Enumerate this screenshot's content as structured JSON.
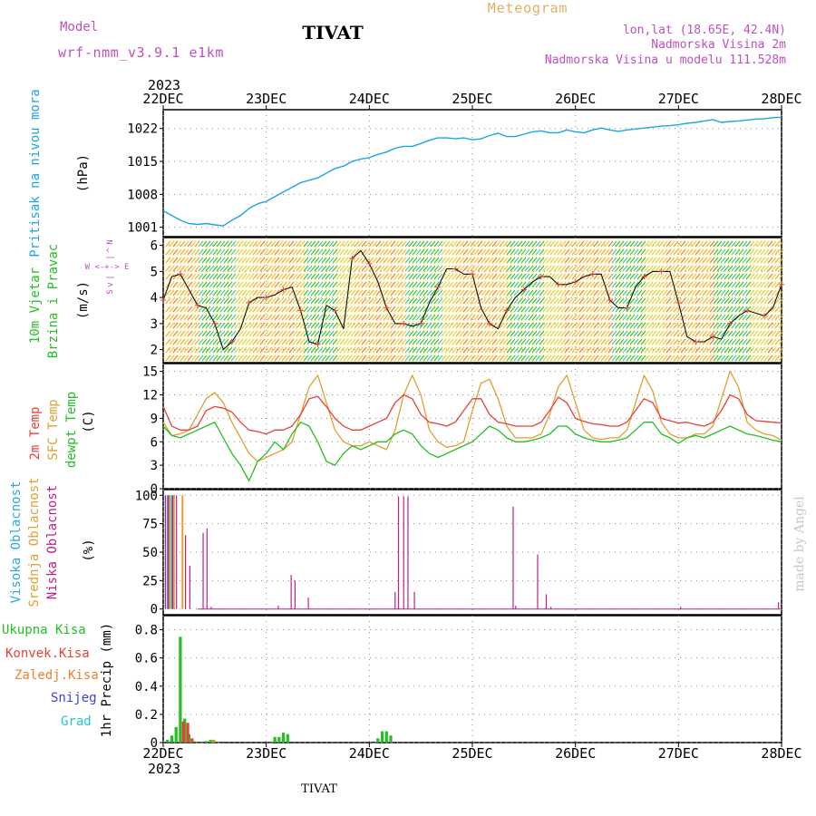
{
  "header": {
    "model_label": "Model",
    "model_name": "wrf-nmm_v3.9.1 e1km",
    "station": "TIVAT",
    "product": "Meteogram",
    "coords": "lon,lat (18.65E, 42.4N)",
    "elevation": "Nadmorska Visina 2m",
    "model_elevation": "Nadmorska Visina u modelu 111.528m",
    "watermark": "made by Angel",
    "footer_station": "TIVAT"
  },
  "colors": {
    "pressure": "#1aa6e6",
    "temp2m": "#e8403a",
    "sfc": "#e0a030",
    "dew": "#22c022",
    "high_cloud": "#2ea8e0",
    "mid_cloud": "#e0a030",
    "low_cloud": "#c0208a",
    "wind_speed": "#111111",
    "rain_total": "#22c022",
    "rain_conv": "#e8403a",
    "rain_frozen": "#f08030",
    "snow": "#4040e0",
    "hail": "#20c8c8",
    "magenta_text": "#c050c0",
    "gold_text": "#e0b060"
  },
  "chart_data": [
    {
      "type": "line",
      "id": "pressure",
      "ylabel_lines": [
        "Pritisak na nivou mora",
        "(hPa)"
      ],
      "x_year": "2023",
      "x_ticks": [
        "22DEC",
        "23DEC",
        "24DEC",
        "25DEC",
        "26DEC",
        "27DEC",
        "28DEC"
      ],
      "x_hours": [
        0,
        24,
        48,
        72,
        96,
        120,
        144
      ],
      "ylim": [
        999,
        1026
      ],
      "y_ticks": [
        1001,
        1008,
        1015,
        1022
      ],
      "series": [
        {
          "x": [
            0,
            2,
            4,
            6,
            8,
            10,
            12,
            14,
            16,
            18,
            20,
            22,
            24,
            26,
            28,
            30,
            32,
            34,
            36,
            38,
            40,
            42,
            44,
            46,
            48,
            50,
            52,
            54,
            56,
            58,
            60,
            62,
            64,
            66,
            68,
            70,
            72,
            74,
            76,
            78,
            80,
            82,
            84,
            86,
            88,
            90,
            92,
            94,
            96,
            98,
            100,
            102,
            104,
            106,
            108,
            110,
            112,
            114,
            116,
            118,
            120,
            122,
            124,
            126,
            128,
            130,
            132,
            134,
            136,
            138,
            140,
            142,
            144
          ],
          "values": [
            1004.5,
            1003.5,
            1002.5,
            1001.8,
            1001.6,
            1001.8,
            1001.5,
            1001.3,
            1002.5,
            1003.5,
            1005,
            1006,
            1006.5,
            1007.5,
            1008.5,
            1009.5,
            1010.5,
            1011,
            1011.5,
            1012.5,
            1013.5,
            1014,
            1015,
            1015.5,
            1015.8,
            1016.5,
            1017,
            1017.8,
            1018.2,
            1018.2,
            1018.8,
            1019.5,
            1020,
            1020,
            1019.8,
            1020,
            1019.6,
            1019.8,
            1020.5,
            1021,
            1020.3,
            1020.3,
            1020.8,
            1021.3,
            1021.5,
            1021.1,
            1021.1,
            1021.7,
            1021.3,
            1021.1,
            1021.7,
            1022.1,
            1021.7,
            1021.4,
            1021.7,
            1021.9,
            1022.1,
            1022.3,
            1022.5,
            1022.6,
            1022.8,
            1023.1,
            1023.3,
            1023.6,
            1023.9,
            1023.3,
            1023.5,
            1023.6,
            1023.8,
            1024,
            1024.1,
            1024.3,
            1024.4
          ]
        }
      ]
    },
    {
      "type": "line",
      "id": "wind",
      "ylabel_lines": [
        "10m Vjetar",
        "Brzina i Pravac",
        "(m/s)"
      ],
      "compass_lines": [
        "N",
        "^",
        "|",
        "W <-+-> E",
        "|",
        "v",
        "S"
      ],
      "ylim": [
        1.5,
        6.3
      ],
      "y_ticks": [
        2,
        3,
        4,
        5,
        6
      ],
      "series": [
        {
          "name": "speed",
          "x": [
            0,
            2,
            4,
            6,
            8,
            10,
            12,
            14,
            16,
            18,
            20,
            22,
            24,
            26,
            28,
            30,
            32,
            34,
            36,
            38,
            40,
            42,
            44,
            46,
            48,
            50,
            52,
            54,
            56,
            58,
            60,
            62,
            64,
            66,
            68,
            70,
            72,
            74,
            76,
            78,
            80,
            82,
            84,
            86,
            88,
            90,
            92,
            94,
            96,
            98,
            100,
            102,
            104,
            106,
            108,
            110,
            112,
            114,
            116,
            118,
            120,
            122,
            124,
            126,
            128,
            130,
            132,
            134,
            136,
            138,
            140,
            142,
            144
          ],
          "values": [
            3.9,
            4.8,
            4.9,
            4.3,
            3.7,
            3.6,
            3.0,
            2.0,
            2.3,
            2.8,
            3.8,
            4.0,
            4.0,
            4.1,
            4.3,
            4.4,
            3.5,
            2.3,
            2.2,
            3.7,
            3.5,
            2.8,
            5.5,
            5.8,
            5.3,
            4.6,
            3.6,
            3.0,
            3.0,
            2.9,
            3.0,
            3.8,
            4.4,
            5.1,
            5.1,
            4.9,
            4.9,
            3.6,
            3.0,
            2.8,
            3.5,
            4.0,
            4.3,
            4.6,
            4.8,
            4.8,
            4.5,
            4.5,
            4.6,
            4.8,
            4.9,
            4.9,
            3.9,
            3.6,
            3.6,
            4.4,
            4.8,
            5.0,
            5.0,
            5.0,
            3.8,
            2.5,
            2.3,
            2.3,
            2.5,
            2.4,
            3.0,
            3.3,
            3.5,
            3.4,
            3.3,
            3.6,
            4.5
          ]
        }
      ]
    },
    {
      "type": "line",
      "id": "temperature",
      "ylabel_lines": [
        "2m Temp",
        "SFC Temp",
        "dewpt Temp",
        "(C)"
      ],
      "ylim": [
        0,
        16
      ],
      "y_ticks": [
        0,
        3,
        6,
        9,
        12,
        15
      ],
      "series": [
        {
          "name": "2m Temp",
          "x": [
            0,
            2,
            4,
            6,
            8,
            10,
            12,
            14,
            16,
            18,
            20,
            22,
            24,
            26,
            28,
            30,
            32,
            34,
            36,
            38,
            40,
            42,
            44,
            46,
            48,
            50,
            52,
            54,
            56,
            58,
            60,
            62,
            64,
            66,
            68,
            70,
            72,
            74,
            76,
            78,
            80,
            82,
            84,
            86,
            88,
            90,
            92,
            94,
            96,
            98,
            100,
            102,
            104,
            106,
            108,
            110,
            112,
            114,
            116,
            118,
            120,
            122,
            124,
            126,
            128,
            130,
            132,
            134,
            136,
            138,
            140,
            142,
            144
          ],
          "values": [
            10.5,
            8,
            7.5,
            7.5,
            8,
            10,
            10.5,
            10.3,
            9.8,
            8.5,
            7.5,
            7.3,
            7,
            7.5,
            7.5,
            8,
            9.5,
            11.5,
            11.8,
            10.5,
            9,
            8,
            7.5,
            7.5,
            8,
            8.5,
            9,
            11,
            12,
            11.5,
            9.5,
            8.5,
            8.3,
            8,
            8.5,
            10,
            11.5,
            11.5,
            9.5,
            8.5,
            8.3,
            8,
            8,
            8,
            8.5,
            10,
            11.7,
            11,
            9,
            8.6,
            8.3,
            8.2,
            8,
            8,
            8.5,
            10,
            11.5,
            11,
            9,
            8.7,
            8.4,
            8.5,
            8.2,
            8,
            8.5,
            10,
            12,
            11.5,
            9.5,
            8.7,
            8.6,
            8.5,
            8.4
          ]
        },
        {
          "name": "SFC Temp",
          "x": [
            0,
            2,
            4,
            6,
            8,
            10,
            12,
            14,
            16,
            18,
            20,
            22,
            24,
            26,
            28,
            30,
            32,
            34,
            36,
            38,
            40,
            42,
            44,
            46,
            48,
            50,
            52,
            54,
            56,
            58,
            60,
            62,
            64,
            66,
            68,
            70,
            72,
            74,
            76,
            78,
            80,
            82,
            84,
            86,
            88,
            90,
            92,
            94,
            96,
            98,
            100,
            102,
            104,
            106,
            108,
            110,
            112,
            114,
            116,
            118,
            120,
            122,
            124,
            126,
            128,
            130,
            132,
            134,
            136,
            138,
            140,
            142,
            144
          ],
          "values": [
            8.5,
            6.8,
            7,
            7.5,
            9.5,
            11.5,
            12.3,
            11,
            8.5,
            6.5,
            4.5,
            3.5,
            4,
            4.5,
            5,
            6,
            9.5,
            13,
            14.5,
            11,
            7.5,
            6,
            5.5,
            5.5,
            6,
            5.5,
            5,
            7.5,
            12,
            14.5,
            12,
            7.5,
            6,
            5.3,
            5.5,
            6,
            10,
            13.5,
            14,
            11.5,
            8,
            6.5,
            6.5,
            6.5,
            7,
            9.5,
            13,
            14.5,
            11,
            7.5,
            6.5,
            6.3,
            6.5,
            6.5,
            7.5,
            11,
            14.5,
            12.5,
            8.5,
            7,
            6.5,
            6.5,
            7,
            7,
            8,
            11.5,
            15,
            13,
            8.5,
            7.5,
            7,
            6.8,
            6.2
          ]
        },
        {
          "name": "dewpt Temp",
          "x": [
            0,
            2,
            4,
            6,
            8,
            10,
            12,
            14,
            16,
            18,
            20,
            22,
            24,
            26,
            28,
            30,
            32,
            34,
            36,
            38,
            40,
            42,
            44,
            46,
            48,
            50,
            52,
            54,
            56,
            58,
            60,
            62,
            64,
            66,
            68,
            70,
            72,
            74,
            76,
            78,
            80,
            82,
            84,
            86,
            88,
            90,
            92,
            94,
            96,
            98,
            100,
            102,
            104,
            106,
            108,
            110,
            112,
            114,
            116,
            118,
            120,
            122,
            124,
            126,
            128,
            130,
            132,
            134,
            136,
            138,
            140,
            142,
            144
          ],
          "values": [
            8,
            6.8,
            6.5,
            7,
            7.5,
            8,
            8.5,
            6.5,
            4.5,
            3,
            1,
            3.5,
            4.5,
            6,
            5,
            7,
            8.5,
            8,
            6,
            3.5,
            3,
            4.5,
            5.5,
            5,
            5.5,
            6,
            6,
            7,
            7.5,
            7,
            5.5,
            4.5,
            4,
            4.5,
            5,
            5.5,
            6,
            7,
            8,
            7.5,
            6.5,
            6,
            6,
            6.2,
            6.5,
            7,
            8,
            8,
            7,
            6.5,
            6.2,
            6,
            6,
            6.2,
            6.5,
            7.5,
            8.5,
            8.5,
            7,
            6.5,
            5.8,
            6.5,
            6.8,
            6.5,
            7,
            7.5,
            8,
            7.5,
            7,
            6.8,
            6.5,
            6.2,
            6
          ]
        }
      ]
    },
    {
      "type": "bar",
      "id": "cloud",
      "ylabel_lines": [
        "Visoka Oblacnost",
        "Srednja Oblacnost",
        "Niska Oblacnost",
        "(%)"
      ],
      "ylim": [
        -5,
        105
      ],
      "y_ticks": [
        0,
        25,
        50,
        75,
        100
      ],
      "series": [
        {
          "name": "Visoka Oblacnost",
          "x": [
            1,
            2
          ],
          "values": [
            100,
            100
          ]
        },
        {
          "name": "Srednja Oblacnost",
          "x": [
            1.5,
            2.5,
            4.5
          ],
          "values": [
            100,
            100,
            100
          ]
        },
        {
          "name": "Niska Oblacnost",
          "x": [
            0.5,
            1.2,
            2.2,
            3.1,
            5.2,
            6.2,
            9.3,
            10.2,
            11.2,
            26.8,
            29.8,
            30.7,
            33.8,
            54,
            54.8,
            56,
            57,
            58.5,
            81.5,
            82.1,
            87.2,
            89.2,
            90.3,
            120.5,
            143.3
          ],
          "values": [
            100,
            100,
            100,
            100,
            65,
            38,
            67,
            71,
            2,
            3,
            30,
            25,
            10,
            15,
            99,
            99,
            99,
            15,
            90,
            3,
            48,
            13,
            2,
            2,
            6
          ]
        }
      ]
    },
    {
      "type": "bar",
      "id": "precip",
      "ylabel_lines": [
        "Ukupna Kisa",
        "Konvek.Kisa",
        "Zaledj.Kisa",
        "Snijeg",
        "Grad",
        "1hr Precip (mm)"
      ],
      "ylim": [
        0,
        0.9
      ],
      "y_ticks": [
        0,
        0.2,
        0.4,
        0.6,
        0.8
      ],
      "series": [
        {
          "name": "Ukupna Kisa",
          "x": [
            1,
            2,
            3,
            4,
            5,
            6,
            7,
            8,
            9,
            10,
            11,
            12,
            13,
            25,
            26,
            27,
            28,
            29,
            49,
            50,
            51,
            52,
            53
          ],
          "values": [
            0.02,
            0.05,
            0.11,
            0.75,
            0.17,
            0.06,
            0.01,
            0.0,
            0.0,
            0.01,
            0.02,
            0.01,
            0.0,
            0.0,
            0.04,
            0.04,
            0.07,
            0.06,
            0.0,
            0.03,
            0.08,
            0.08,
            0.05
          ]
        },
        {
          "name": "Konvek.Kisa",
          "x": [
            4,
            5,
            6
          ],
          "values": [
            0.15,
            0.14,
            0.03
          ]
        },
        {
          "name": "Zaledj.Kisa",
          "x": [
            11
          ],
          "values": [
            0.02
          ]
        },
        {
          "name": "Snijeg",
          "x": [],
          "values": []
        },
        {
          "name": "Grad",
          "x": [],
          "values": []
        }
      ]
    }
  ]
}
